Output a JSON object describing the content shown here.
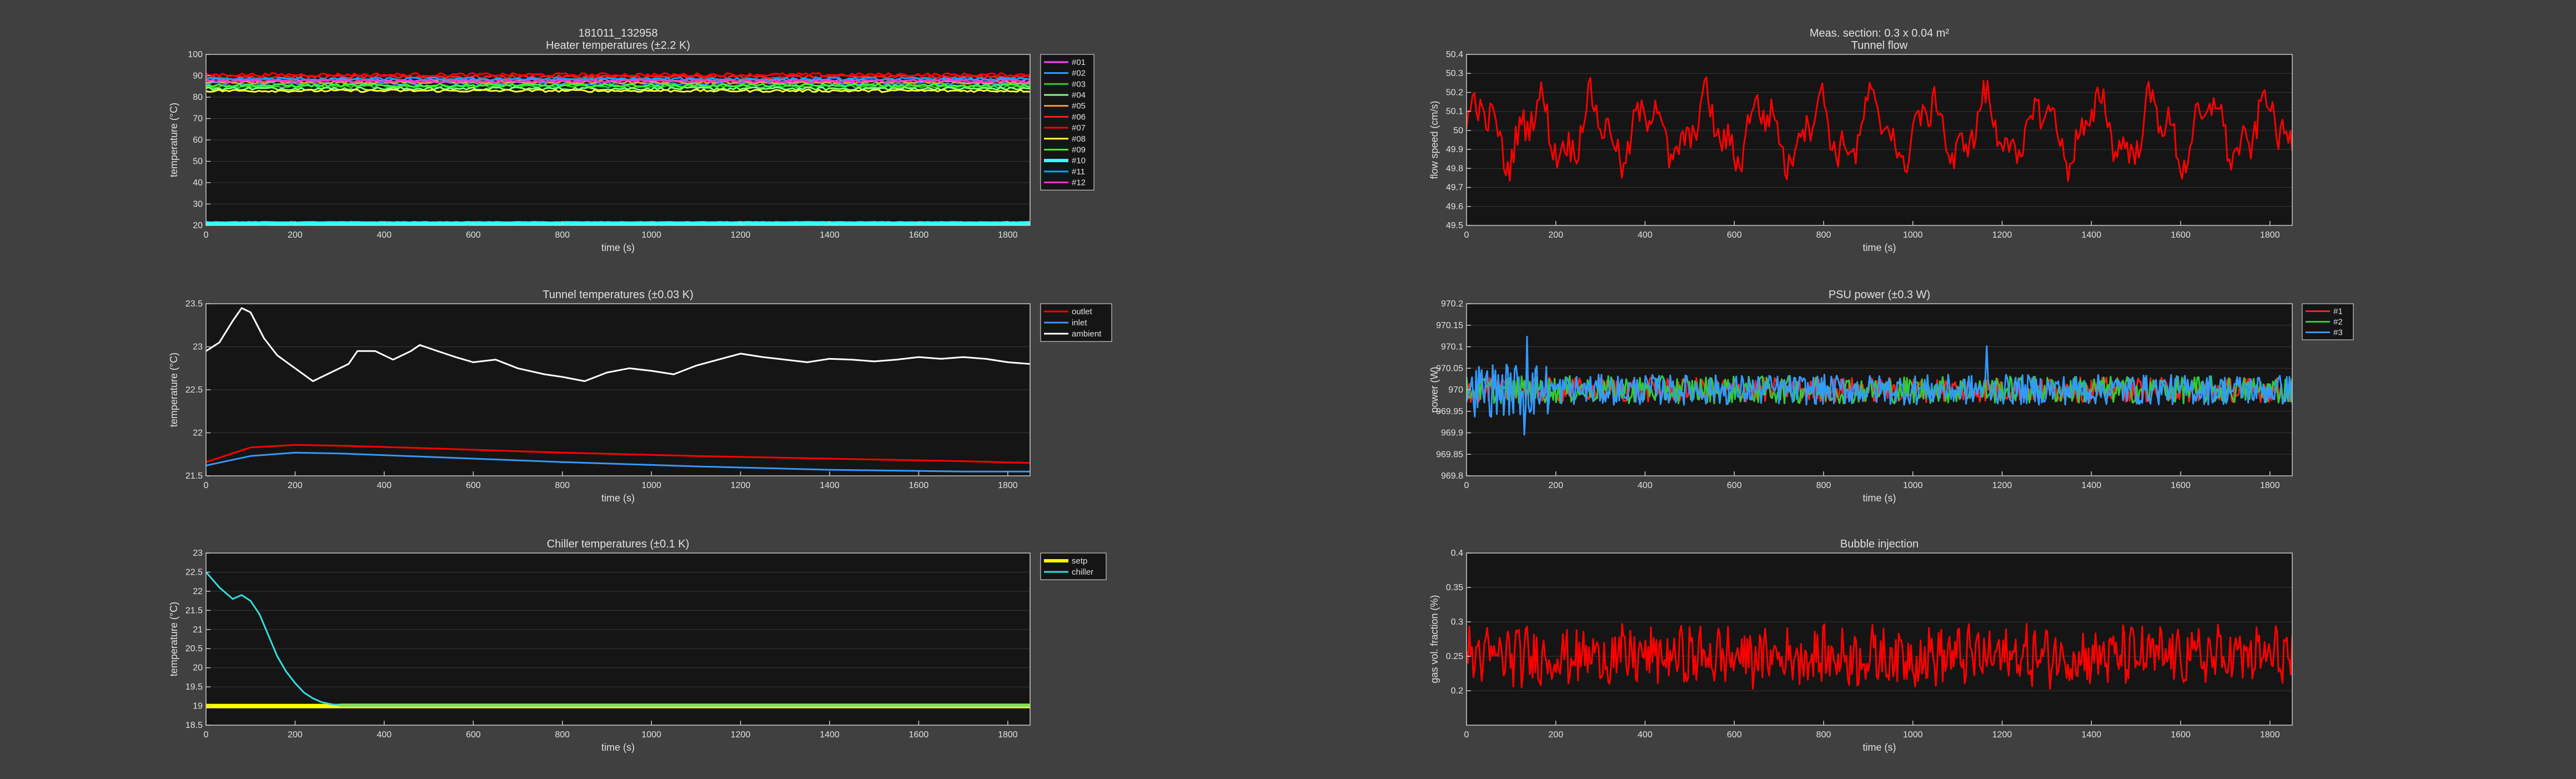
{
  "figure": {
    "background": "#404040",
    "axes_bg": "#151515",
    "axis_color": "#c8c8c8",
    "grid_color": "#383838",
    "text_color": "#e0e0e0"
  },
  "chart_data": [
    {
      "id": "heater",
      "type": "line",
      "suptitle": "181011_132958",
      "title": "Heater temperatures (±2.2 K)",
      "xlabel": "time (s)",
      "ylabel": "temperature (°C)",
      "xlim": [
        0,
        1850
      ],
      "ylim": [
        20,
        100
      ],
      "xticks": [
        0,
        200,
        400,
        600,
        800,
        1000,
        1200,
        1400,
        1600,
        1800
      ],
      "yticks": [
        20,
        30,
        40,
        50,
        60,
        70,
        80,
        90,
        100
      ],
      "grid": true,
      "legend": "outside-right",
      "series": [
        {
          "name": "#01",
          "color": "#ff40ff",
          "base": 88,
          "noise": 0.7
        },
        {
          "name": "#02",
          "color": "#3399ff",
          "base": 86.5,
          "noise": 0.7
        },
        {
          "name": "#03",
          "color": "#33cc33",
          "base": 85,
          "noise": 0.7
        },
        {
          "name": "#04",
          "color": "#80ff80",
          "base": 84,
          "noise": 0.7
        },
        {
          "name": "#05",
          "color": "#ff9933",
          "base": 87,
          "noise": 0.7
        },
        {
          "name": "#06",
          "color": "#ff2020",
          "base": 89.5,
          "noise": 0.8
        },
        {
          "name": "#07",
          "color": "#ff0000",
          "base": 90.5,
          "noise": 0.8
        },
        {
          "name": "#08",
          "color": "#ffff33",
          "base": 83,
          "noise": 0.6
        },
        {
          "name": "#09",
          "color": "#33ff33",
          "base": 85.5,
          "noise": 0.7
        },
        {
          "name": "#10",
          "color": "#33ffff",
          "base": 21,
          "noise": 0.1
        },
        {
          "name": "#11",
          "color": "#00aaff",
          "base": 88.5,
          "noise": 0.7
        },
        {
          "name": "#12",
          "color": "#ff33cc",
          "base": 87.5,
          "noise": 0.7
        }
      ]
    },
    {
      "id": "tunnelflow",
      "type": "line",
      "suptitle": "Meas. section: 0.3 x 0.04 m²",
      "title": "Tunnel flow",
      "xlabel": "time (s)",
      "ylabel": "flow speed (cm/s)",
      "xlim": [
        0,
        1850
      ],
      "ylim": [
        49.5,
        50.4
      ],
      "xticks": [
        0,
        200,
        400,
        600,
        800,
        1000,
        1200,
        1400,
        1600,
        1800
      ],
      "yticks": [
        49.5,
        49.6,
        49.7,
        49.8,
        49.9,
        50,
        50.1,
        50.2,
        50.3,
        50.4
      ],
      "grid": true,
      "legend": "none",
      "series": [
        {
          "name": "",
          "color": "#ff0000",
          "base": 50.0,
          "noise": 0.16
        }
      ]
    },
    {
      "id": "tunneltemp",
      "type": "line",
      "title": "Tunnel temperatures (±0.03 K)",
      "xlabel": "time (s)",
      "ylabel": "temperature (°C)",
      "xlim": [
        0,
        1850
      ],
      "ylim": [
        21.5,
        23.5
      ],
      "xticks": [
        0,
        200,
        400,
        600,
        800,
        1000,
        1200,
        1400,
        1600,
        1800
      ],
      "yticks": [
        21.5,
        22,
        22.5,
        23,
        23.5
      ],
      "grid": true,
      "legend": "outside-right",
      "series": [
        {
          "name": "outlet",
          "color": "#ff0000",
          "x": [
            0,
            100,
            200,
            300,
            500,
            800,
            1100,
            1400,
            1700,
            1850
          ],
          "y": [
            21.66,
            21.83,
            21.86,
            21.85,
            21.82,
            21.77,
            21.73,
            21.7,
            21.67,
            21.65
          ]
        },
        {
          "name": "inlet",
          "color": "#3399ff",
          "x": [
            0,
            100,
            200,
            300,
            500,
            800,
            1100,
            1400,
            1700,
            1850
          ],
          "y": [
            21.62,
            21.73,
            21.77,
            21.76,
            21.72,
            21.66,
            21.61,
            21.57,
            21.55,
            21.55
          ]
        },
        {
          "name": "ambient",
          "color": "#ffffff",
          "x": [
            0,
            30,
            60,
            80,
            100,
            130,
            160,
            200,
            240,
            280,
            320,
            340,
            380,
            420,
            460,
            480,
            520,
            560,
            600,
            650,
            700,
            760,
            800,
            850,
            900,
            950,
            1000,
            1050,
            1100,
            1150,
            1200,
            1250,
            1300,
            1350,
            1400,
            1450,
            1500,
            1550,
            1600,
            1650,
            1700,
            1750,
            1800,
            1850
          ],
          "y": [
            22.95,
            23.05,
            23.3,
            23.45,
            23.4,
            23.1,
            22.9,
            22.75,
            22.6,
            22.7,
            22.8,
            22.95,
            22.95,
            22.85,
            22.95,
            23.02,
            22.95,
            22.88,
            22.82,
            22.85,
            22.75,
            22.68,
            22.65,
            22.6,
            22.7,
            22.75,
            22.72,
            22.68,
            22.78,
            22.85,
            22.92,
            22.88,
            22.85,
            22.82,
            22.86,
            22.85,
            22.83,
            22.85,
            22.88,
            22.86,
            22.88,
            22.86,
            22.82,
            22.8
          ]
        }
      ]
    },
    {
      "id": "psupower",
      "type": "line",
      "title": "PSU power (±0.3 W)",
      "xlabel": "time (s)",
      "ylabel": "power (W)",
      "xlim": [
        0,
        1850
      ],
      "ylim": [
        969.8,
        970.2
      ],
      "xticks": [
        0,
        200,
        400,
        600,
        800,
        1000,
        1200,
        1400,
        1600,
        1800
      ],
      "yticks": [
        969.8,
        969.85,
        969.9,
        969.95,
        970,
        970.05,
        970.1,
        970.15,
        970.2
      ],
      "grid": true,
      "legend": "outside-right",
      "series": [
        {
          "name": "#1",
          "color": "#ff2020",
          "base": 970.0,
          "noise": 0.018
        },
        {
          "name": "#2",
          "color": "#33cc33",
          "base": 970.0,
          "noise": 0.02
        },
        {
          "name": "#3",
          "color": "#3399ff",
          "base": 970.0,
          "noise": 0.022
        }
      ]
    },
    {
      "id": "chiller",
      "type": "line",
      "title": "Chiller temperatures (±0.1 K)",
      "xlabel": "time (s)",
      "ylabel": "temperature (°C)",
      "xlim": [
        0,
        1850
      ],
      "ylim": [
        18.5,
        23
      ],
      "xticks": [
        0,
        200,
        400,
        600,
        800,
        1000,
        1200,
        1400,
        1600,
        1800
      ],
      "yticks": [
        18.5,
        19,
        19.5,
        20,
        20.5,
        21,
        21.5,
        22,
        22.5,
        23
      ],
      "grid": true,
      "legend": "outside-right",
      "series": [
        {
          "name": "setp",
          "color": "#ffff00",
          "x": [
            0,
            1850
          ],
          "y": [
            19,
            19
          ]
        },
        {
          "name": "chiller",
          "color": "#33dddd",
          "x": [
            0,
            30,
            60,
            80,
            100,
            120,
            140,
            160,
            180,
            200,
            220,
            240,
            260,
            280,
            300,
            1850
          ],
          "y": [
            22.5,
            22.1,
            21.8,
            21.9,
            21.75,
            21.4,
            20.85,
            20.3,
            19.9,
            19.6,
            19.35,
            19.2,
            19.1,
            19.05,
            19.02,
            19.02
          ]
        }
      ]
    },
    {
      "id": "bubble",
      "type": "line",
      "title": "Bubble injection",
      "xlabel": "time (s)",
      "ylabel": "gas vol. fraction (%)",
      "xlim": [
        0,
        1850
      ],
      "ylim": [
        0.15,
        0.4
      ],
      "xticks": [
        0,
        200,
        400,
        600,
        800,
        1000,
        1200,
        1400,
        1600,
        1800
      ],
      "yticks": [
        0.2,
        0.25,
        0.3,
        0.35,
        0.4
      ],
      "grid": true,
      "legend": "none",
      "series": [
        {
          "name": "",
          "color": "#ff0000",
          "base": 0.25,
          "noise": 0.03
        }
      ]
    }
  ]
}
